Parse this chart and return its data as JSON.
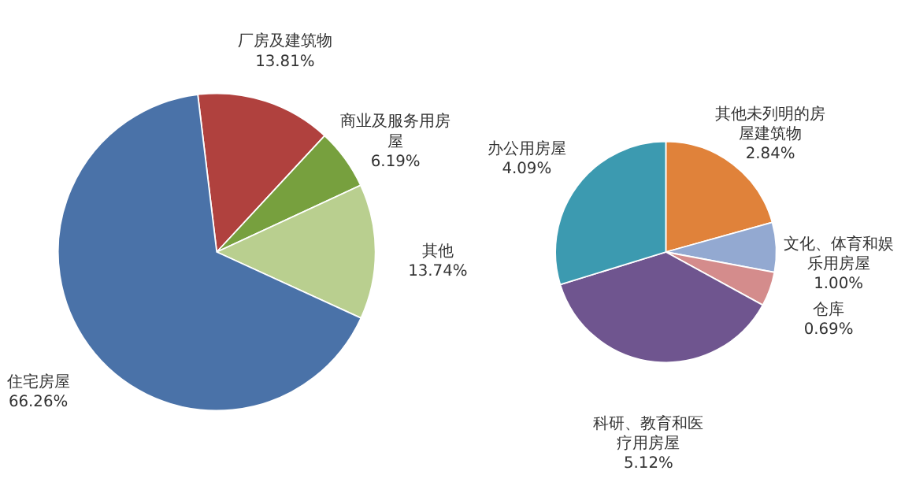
{
  "chart_data": [
    {
      "type": "pie",
      "categories": [
        "厂房及建筑物",
        "商业及服务用房屋",
        "其他",
        "住宅房屋"
      ],
      "values": [
        13.81,
        6.19,
        13.74,
        66.26
      ],
      "colors": [
        "#b0413e",
        "#77a03e",
        "#b9cf8f",
        "#4a72a8"
      ],
      "value_labels": [
        "13.81%",
        "6.19%",
        "13.74%",
        "66.26%"
      ]
    },
    {
      "type": "pie",
      "categories": [
        "其他未列明的房屋建筑物",
        "文化、体育和娱乐用房屋",
        "仓库",
        "科研、教育和医疗用房屋",
        "办公用房屋"
      ],
      "values": [
        2.84,
        1.0,
        0.69,
        5.12,
        4.09
      ],
      "colors": [
        "#e0823a",
        "#93a9d1",
        "#d48c8c",
        "#6f558f",
        "#3c9ab0"
      ],
      "value_labels": [
        "2.84%",
        "1.00%",
        "0.69%",
        "5.12%",
        "4.09%"
      ]
    }
  ]
}
